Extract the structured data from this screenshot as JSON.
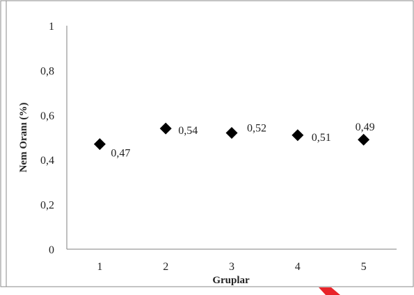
{
  "chart_data": {
    "type": "scatter",
    "x": [
      1,
      2,
      3,
      4,
      5
    ],
    "y": [
      0.47,
      0.54,
      0.52,
      0.51,
      0.49
    ],
    "data_labels": [
      "0,47",
      "0,54",
      "0,52",
      "0,51",
      "0,49"
    ],
    "x_ticks": [
      "1",
      "2",
      "3",
      "4",
      "5"
    ],
    "y_ticks": [
      "0",
      "0,2",
      "0,4",
      "0,6",
      "0,8",
      "1"
    ],
    "xlabel": "Gruplar",
    "ylabel": "Nem Oranı (%)",
    "xlim": [
      0.5,
      5.5
    ],
    "ylim": [
      0,
      1
    ],
    "grid": false,
    "legend": "none",
    "marker": "diamond",
    "colors": {
      "marker": "#000000",
      "axis": "#7f7f7f",
      "frame": "#888888",
      "accent": "#e8242a"
    }
  }
}
